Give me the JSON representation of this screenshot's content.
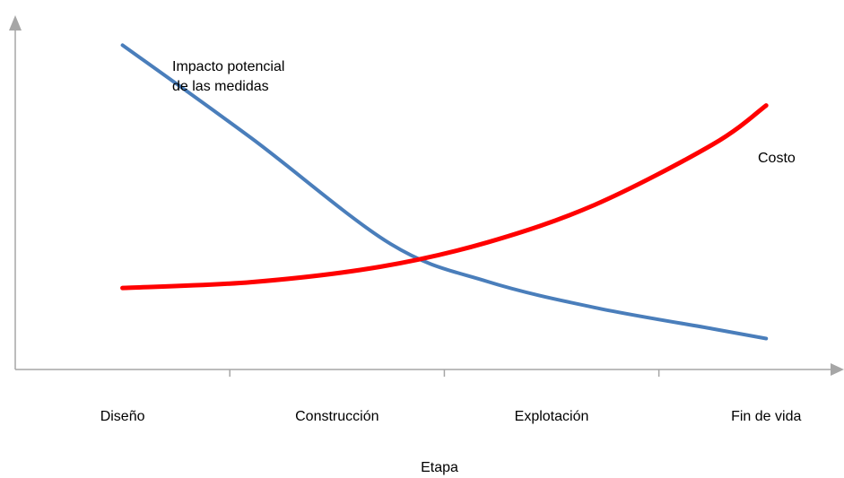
{
  "chart_data": {
    "type": "line",
    "title": "",
    "xlabel": "Etapa",
    "ylabel": "",
    "categories": [
      "Diseño",
      "Construcción",
      "Explotación",
      "Fin de vida"
    ],
    "series": [
      {
        "name": "Impacto potencial de las medidas",
        "name_lines": [
          "Impacto potencial",
          "de las medidas"
        ],
        "color": "#4a7ebb",
        "x": [
          0.0,
          0.6,
          1.25,
          1.7,
          2.2,
          2.75,
          3.0
        ],
        "y": [
          0.995,
          0.71,
          0.385,
          0.27,
          0.19,
          0.125,
          0.095
        ]
      },
      {
        "name": "Costo",
        "color": "#ff0000",
        "x": [
          0.0,
          0.6,
          1.2,
          1.7,
          2.2,
          2.75,
          3.0
        ],
        "y": [
          0.25,
          0.268,
          0.315,
          0.39,
          0.505,
          0.69,
          0.81
        ]
      }
    ],
    "xlim": [
      -0.5,
      3.3
    ],
    "ylim": [
      0,
      1.04
    ],
    "grid": false,
    "legend": "none",
    "axis_color": "#a6a6a6"
  }
}
